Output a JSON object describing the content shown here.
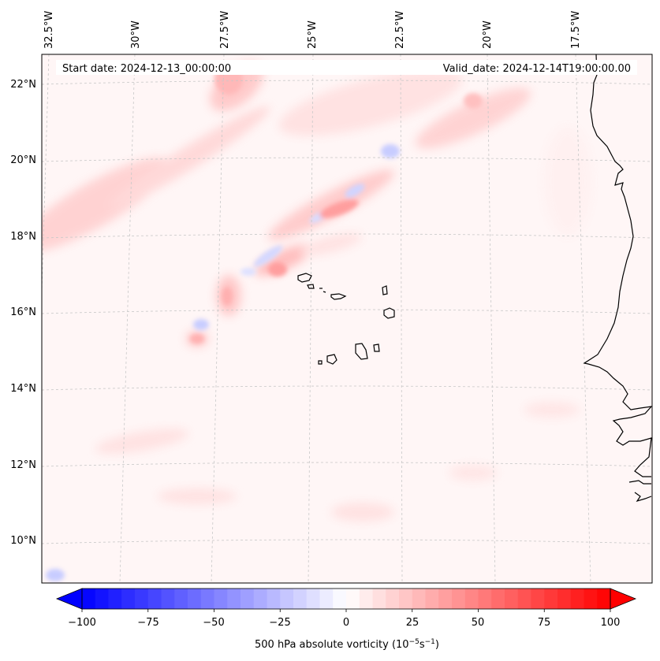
{
  "header": {
    "start_label": "Start date: 2024-12-13_00:00:00",
    "valid_label": "Valid_date: 2024-12-14T19:00:00.00"
  },
  "map": {
    "lon_labels": [
      "32.5°W",
      "30°W",
      "27.5°W",
      "25°W",
      "22.5°W",
      "20°W",
      "17.5°W"
    ],
    "lat_labels": [
      "22°N",
      "20°N",
      "18°N",
      "16°N",
      "14°N",
      "12°N",
      "10°N"
    ],
    "field_colors": {
      "positive": "#ff0000",
      "negative": "#0000ff",
      "neutral": "#ffffff"
    }
  },
  "colorbar": {
    "ticks": [
      "−100",
      "−75",
      "−50",
      "−25",
      "0",
      "25",
      "50",
      "75",
      "100"
    ],
    "label_main": "500 hPa absolute vorticity (10",
    "label_exp1": "−5",
    "label_mid": "s",
    "label_exp2": "−1",
    "label_end": ")",
    "min": -100,
    "max": 100
  }
}
